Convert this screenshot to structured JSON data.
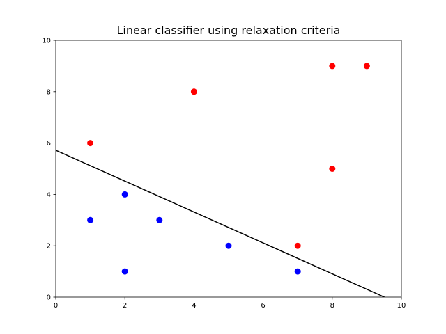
{
  "chart_data": {
    "type": "scatter",
    "title": "Linear classifier using relaxation criteria",
    "xlabel": "",
    "ylabel": "",
    "xlim": [
      0,
      10
    ],
    "ylim": [
      0,
      10
    ],
    "x_ticks": [
      0,
      2,
      4,
      6,
      8,
      10
    ],
    "y_ticks": [
      0,
      2,
      4,
      6,
      8,
      10
    ],
    "grid": false,
    "series": [
      {
        "color": "#ff0000",
        "points": [
          [
            1,
            6
          ],
          [
            4,
            8
          ],
          [
            8,
            9
          ],
          [
            9,
            9
          ],
          [
            8,
            5
          ],
          [
            7,
            2
          ]
        ]
      },
      {
        "color": "#0000ff",
        "points": [
          [
            1,
            3
          ],
          [
            2,
            4
          ],
          [
            2,
            1
          ],
          [
            3,
            3
          ],
          [
            5,
            2
          ],
          [
            7,
            1
          ]
        ]
      }
    ],
    "decision_line": {
      "color": "#000000",
      "points": [
        [
          0,
          5.72
        ],
        [
          9.51,
          0
        ]
      ]
    }
  }
}
